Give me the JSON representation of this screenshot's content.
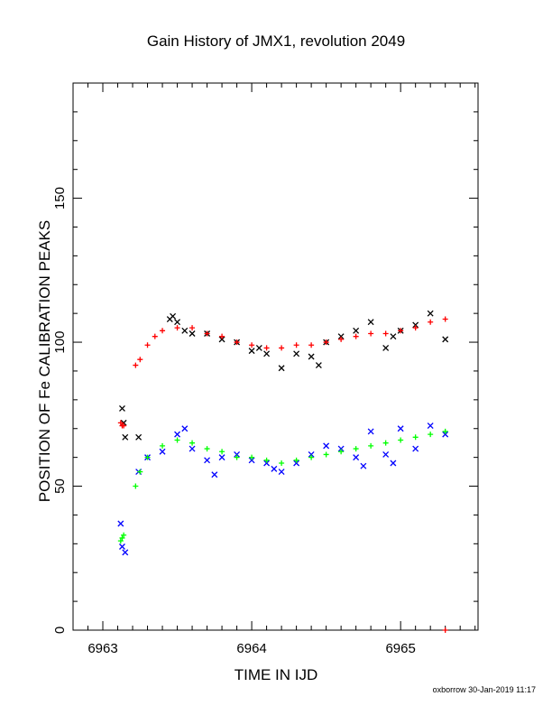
{
  "chart_data": {
    "type": "scatter",
    "title": "Gain History of JMX1, revolution 2049",
    "xlabel": "TIME IN IJD",
    "ylabel": "POSITION OF Fe CALIBRATION PEAKS",
    "xlim": [
      6962.8,
      6965.52
    ],
    "ylim": [
      0,
      190
    ],
    "x_ticks": [
      6963,
      6964,
      6965
    ],
    "y_ticks": [
      0,
      50,
      100,
      150
    ],
    "grid": false,
    "series": [
      {
        "marker": "x",
        "color": "#000000",
        "points": [
          [
            6963.13,
            77
          ],
          [
            6963.14,
            72
          ],
          [
            6963.15,
            67
          ],
          [
            6963.24,
            67
          ],
          [
            6963.45,
            108
          ],
          [
            6963.47,
            109
          ],
          [
            6963.5,
            107
          ],
          [
            6963.55,
            104
          ],
          [
            6963.6,
            103
          ],
          [
            6963.7,
            103
          ],
          [
            6963.8,
            101
          ],
          [
            6963.9,
            100
          ],
          [
            6964.0,
            97
          ],
          [
            6964.05,
            98
          ],
          [
            6964.1,
            96
          ],
          [
            6964.2,
            91
          ],
          [
            6964.3,
            96
          ],
          [
            6964.4,
            95
          ],
          [
            6964.45,
            92
          ],
          [
            6964.5,
            100
          ],
          [
            6964.6,
            102
          ],
          [
            6964.7,
            104
          ],
          [
            6964.8,
            107
          ],
          [
            6964.9,
            98
          ],
          [
            6964.95,
            102
          ],
          [
            6965.0,
            104
          ],
          [
            6965.1,
            106
          ],
          [
            6965.2,
            110
          ],
          [
            6965.3,
            101
          ]
        ]
      },
      {
        "marker": "+",
        "color": "#ff0000",
        "points": [
          [
            6963.12,
            72
          ],
          [
            6963.13,
            71
          ],
          [
            6963.14,
            71
          ],
          [
            6963.22,
            92
          ],
          [
            6963.25,
            94
          ],
          [
            6963.3,
            99
          ],
          [
            6963.35,
            102
          ],
          [
            6963.4,
            104
          ],
          [
            6963.5,
            105
          ],
          [
            6963.6,
            105
          ],
          [
            6963.7,
            103
          ],
          [
            6963.8,
            102
          ],
          [
            6963.9,
            100
          ],
          [
            6964.0,
            99
          ],
          [
            6964.1,
            98
          ],
          [
            6964.2,
            98
          ],
          [
            6964.3,
            99
          ],
          [
            6964.4,
            99
          ],
          [
            6964.5,
            100
          ],
          [
            6964.6,
            101
          ],
          [
            6964.7,
            102
          ],
          [
            6964.8,
            103
          ],
          [
            6964.9,
            103
          ],
          [
            6965.0,
            104
          ],
          [
            6965.1,
            105
          ],
          [
            6965.2,
            107
          ],
          [
            6965.3,
            108
          ],
          [
            6965.3,
            0
          ]
        ]
      },
      {
        "marker": "x",
        "color": "#0000ff",
        "points": [
          [
            6963.12,
            37
          ],
          [
            6963.13,
            29
          ],
          [
            6963.15,
            27
          ],
          [
            6963.24,
            55
          ],
          [
            6963.3,
            60
          ],
          [
            6963.4,
            62
          ],
          [
            6963.5,
            68
          ],
          [
            6963.55,
            70
          ],
          [
            6963.6,
            63
          ],
          [
            6963.7,
            59
          ],
          [
            6963.75,
            54
          ],
          [
            6963.8,
            60
          ],
          [
            6963.9,
            61
          ],
          [
            6964.0,
            59
          ],
          [
            6964.1,
            58
          ],
          [
            6964.15,
            56
          ],
          [
            6964.2,
            55
          ],
          [
            6964.3,
            58
          ],
          [
            6964.4,
            61
          ],
          [
            6964.5,
            64
          ],
          [
            6964.6,
            63
          ],
          [
            6964.7,
            60
          ],
          [
            6964.75,
            57
          ],
          [
            6964.8,
            69
          ],
          [
            6964.9,
            61
          ],
          [
            6964.95,
            58
          ],
          [
            6965.0,
            70
          ],
          [
            6965.1,
            63
          ],
          [
            6965.2,
            71
          ],
          [
            6965.3,
            68
          ]
        ]
      },
      {
        "marker": "+",
        "color": "#00ff00",
        "points": [
          [
            6963.12,
            31
          ],
          [
            6963.13,
            32
          ],
          [
            6963.14,
            33
          ],
          [
            6963.22,
            50
          ],
          [
            6963.25,
            55
          ],
          [
            6963.3,
            60
          ],
          [
            6963.4,
            64
          ],
          [
            6963.5,
            66
          ],
          [
            6963.6,
            65
          ],
          [
            6963.7,
            63
          ],
          [
            6963.8,
            62
          ],
          [
            6963.9,
            60
          ],
          [
            6964.0,
            60
          ],
          [
            6964.1,
            59
          ],
          [
            6964.2,
            58
          ],
          [
            6964.3,
            59
          ],
          [
            6964.4,
            60
          ],
          [
            6964.5,
            61
          ],
          [
            6964.6,
            62
          ],
          [
            6964.7,
            63
          ],
          [
            6964.8,
            64
          ],
          [
            6964.9,
            65
          ],
          [
            6965.0,
            66
          ],
          [
            6965.1,
            67
          ],
          [
            6965.2,
            68
          ],
          [
            6965.3,
            69
          ]
        ]
      }
    ]
  },
  "footer": "oxborrow 30-Jan-2019 11:17"
}
